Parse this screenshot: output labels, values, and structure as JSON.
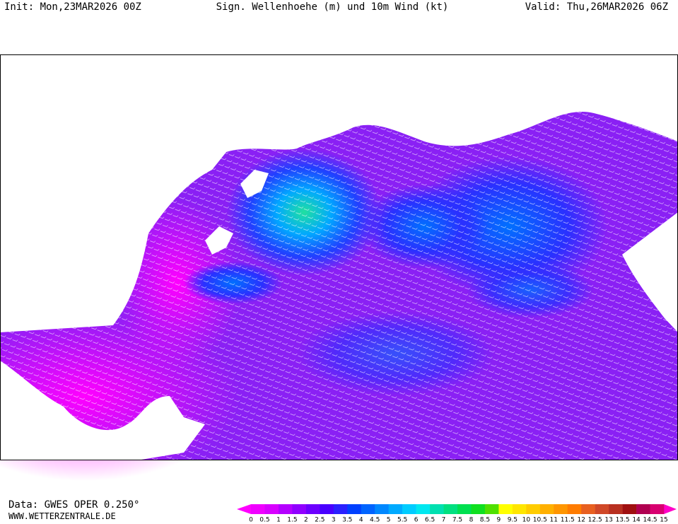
{
  "header": {
    "init": "Init: Mon,23MAR2026 00Z",
    "title": "Sign. Wellenhoehe (m) und 10m Wind (kt)",
    "valid": "Valid: Thu,26MAR2026 06Z"
  },
  "footer": {
    "source": "Data: GWES OPER 0.250°",
    "website": "WWW.WETTERZENTRALE.DE"
  },
  "legend": {
    "ticks": [
      0,
      0.5,
      1,
      1.5,
      2,
      2.5,
      3,
      3.5,
      4,
      4.5,
      5,
      5.5,
      6,
      6.5,
      7,
      7.5,
      8,
      8.5,
      9,
      9.5,
      10,
      10.5,
      11,
      11.5,
      12,
      12.5,
      13,
      13.5,
      14,
      14.5,
      15
    ],
    "colors": [
      "#f000ff",
      "#d800ff",
      "#b400ff",
      "#9000ff",
      "#6c00ff",
      "#4800ff",
      "#2a20ff",
      "#0040ff",
      "#0064ff",
      "#0088ff",
      "#00aaff",
      "#00ccff",
      "#00e8f0",
      "#00e0b0",
      "#00e080",
      "#00e050",
      "#10e020",
      "#50e000",
      "#ffff00",
      "#ffe600",
      "#ffcc00",
      "#ffb000",
      "#ff9600",
      "#ff7c00",
      "#e86020",
      "#d04828",
      "#b83020",
      "#a01010",
      "#b00050",
      "#d80070"
    ],
    "under_color": "#ff00ff",
    "over_color": "#ff00c8"
  }
}
